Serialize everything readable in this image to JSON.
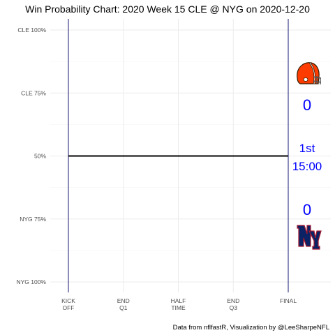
{
  "chart_data": {
    "type": "line",
    "title": "Win Probability Chart: 2020 Week 15 CLE @ NYG on 2020-12-20",
    "caption": "Data from nflfastR, Visualization by @LeeSharpeNFL",
    "x_ticks": [
      {
        "label": [
          "KICK",
          "OFF"
        ],
        "value": 0
      },
      {
        "label": [
          "END",
          "Q1"
        ],
        "value": 15
      },
      {
        "label": [
          "HALF",
          "TIME"
        ],
        "value": 30
      },
      {
        "label": [
          "END",
          "Q3"
        ],
        "value": 45
      },
      {
        "label": [
          "FINAL"
        ],
        "value": 60
      }
    ],
    "xlim": [
      0,
      60
    ],
    "y_ticks": [
      {
        "label": "CLE 100%",
        "value": 1.0
      },
      {
        "label": "CLE 75%",
        "value": 0.75
      },
      {
        "label": "50%",
        "value": 0.5
      },
      {
        "label": "NYG 75%",
        "value": 0.25
      },
      {
        "label": "NYG 100%",
        "value": 0.0
      }
    ],
    "ylim": [
      0,
      1
    ],
    "grid": true,
    "series": [
      {
        "x": [
          0,
          60
        ],
        "y": [
          0.5,
          0.5
        ],
        "color": "#000000"
      }
    ],
    "vlines": [
      0,
      60
    ],
    "vline_color": "#191970",
    "teams": {
      "top": {
        "team": "CLE",
        "score": "0",
        "logo": "browns-helmet-icon",
        "color": "#ff3c00"
      },
      "bottom": {
        "team": "NYG",
        "score": "0",
        "logo": "giants-ny-logo-icon",
        "color": "#0b2265"
      }
    },
    "game_state": {
      "quarter": "1st",
      "clock": "15:00"
    },
    "text_color": "#0000ff"
  }
}
